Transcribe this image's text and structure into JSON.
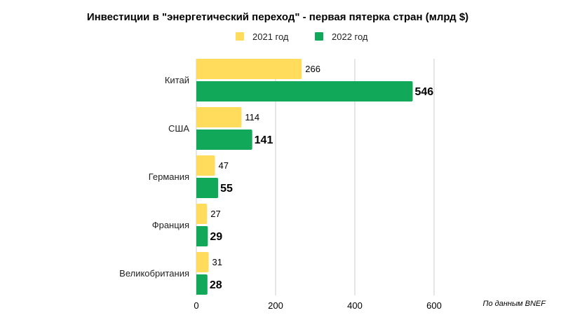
{
  "chart_data": {
    "type": "bar",
    "orientation": "horizontal",
    "title": "Инвестиции в \"энергетический переход\" - первая пятерка стран (млрд $)",
    "categories": [
      "Китай",
      "США",
      "Германия",
      "Франция",
      "Великобритания"
    ],
    "series": [
      {
        "name": "2021 год",
        "values": [
          266,
          114,
          47,
          27,
          31
        ],
        "color": "#FFDC5C"
      },
      {
        "name": "2022 год",
        "values": [
          546,
          141,
          55,
          29,
          28
        ],
        "color": "#11A85A"
      }
    ],
    "xticks": [
      0,
      200,
      400,
      600
    ],
    "xlim": [
      0,
      600
    ],
    "grid": true,
    "legend": "top-center",
    "annotation": "По данным BNEF"
  }
}
